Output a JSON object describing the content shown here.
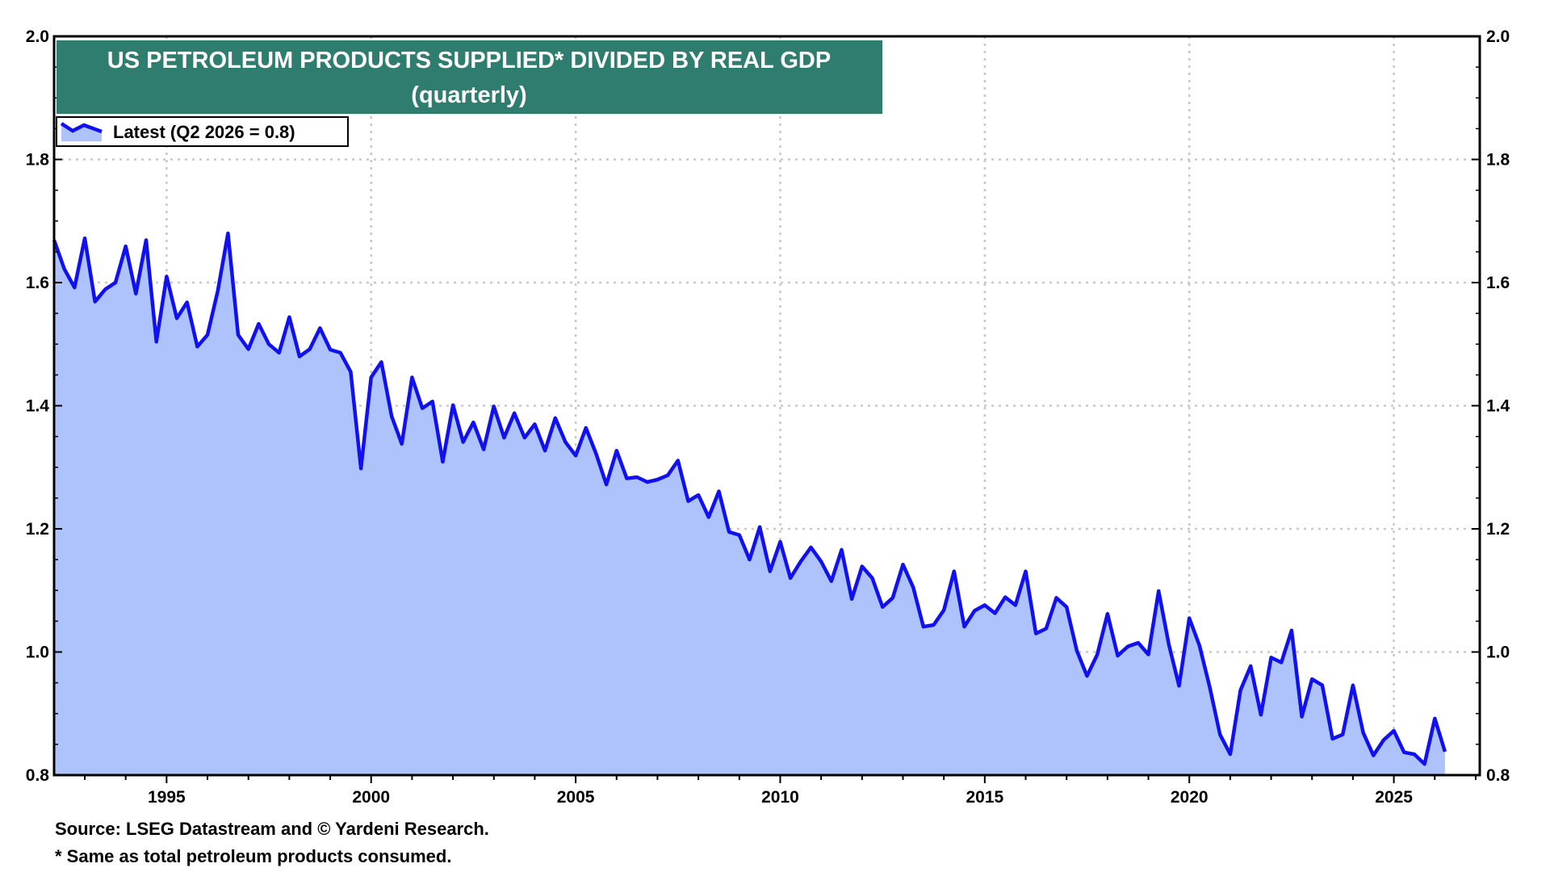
{
  "chart_data": {
    "type": "area",
    "title": "US PETROLEUM PRODUCTS SUPPLIED* DIVIDED BY REAL GDP",
    "subtitle": "(quarterly)",
    "legend": {
      "label": "Latest (Q2 2026 = 0.8)",
      "placement": "top-left"
    },
    "footnotes": [
      "Source: LSEG Datastream and © Yardeni Research.",
      "* Same as total petroleum products consumed."
    ],
    "xlabel": "",
    "ylabel": "",
    "x_start": "1992Q2",
    "x_end": "2026Q2",
    "xlim": [
      1992.25,
      2027.1
    ],
    "ylim": [
      0.8,
      2.0
    ],
    "x_ticks": [
      "1995",
      "2000",
      "2005",
      "2010",
      "2015",
      "2020",
      "2025"
    ],
    "y_ticks": [
      "0.8",
      "1.0",
      "1.2",
      "1.4",
      "1.6",
      "1.8",
      "2.0"
    ],
    "grid": true,
    "dual_y_axis": true,
    "colors": {
      "line": "#1010F0",
      "fill": "#AEC3FC",
      "title_bg": "#2E7D6E"
    },
    "values": [
      1.669,
      1.622,
      1.592,
      1.672,
      1.569,
      1.589,
      1.6,
      1.659,
      1.582,
      1.669,
      1.504,
      1.61,
      1.542,
      1.568,
      1.496,
      1.515,
      1.586,
      1.68,
      1.515,
      1.492,
      1.533,
      1.5,
      1.486,
      1.544,
      1.48,
      1.492,
      1.526,
      1.491,
      1.486,
      1.455,
      1.298,
      1.446,
      1.471,
      1.383,
      1.338,
      1.446,
      1.396,
      1.407,
      1.309,
      1.401,
      1.341,
      1.373,
      1.329,
      1.399,
      1.348,
      1.388,
      1.348,
      1.37,
      1.327,
      1.38,
      1.341,
      1.319,
      1.364,
      1.322,
      1.272,
      1.327,
      1.282,
      1.284,
      1.276,
      1.28,
      1.287,
      1.311,
      1.245,
      1.255,
      1.219,
      1.261,
      1.195,
      1.19,
      1.15,
      1.203,
      1.131,
      1.179,
      1.12,
      1.147,
      1.17,
      1.147,
      1.115,
      1.166,
      1.086,
      1.139,
      1.12,
      1.073,
      1.088,
      1.142,
      1.105,
      1.041,
      1.044,
      1.068,
      1.131,
      1.041,
      1.067,
      1.076,
      1.063,
      1.089,
      1.076,
      1.131,
      1.03,
      1.038,
      1.088,
      1.073,
      1.002,
      0.961,
      0.996,
      1.062,
      0.994,
      1.009,
      1.015,
      0.996,
      1.099,
      1.012,
      0.945,
      1.055,
      1.01,
      0.943,
      0.866,
      0.834,
      0.938,
      0.977,
      0.898,
      0.991,
      0.983,
      1.035,
      0.895,
      0.956,
      0.946,
      0.859,
      0.866,
      0.946,
      0.869,
      0.832,
      0.857,
      0.872,
      0.837,
      0.834,
      0.818,
      0.892,
      0.838
    ]
  }
}
